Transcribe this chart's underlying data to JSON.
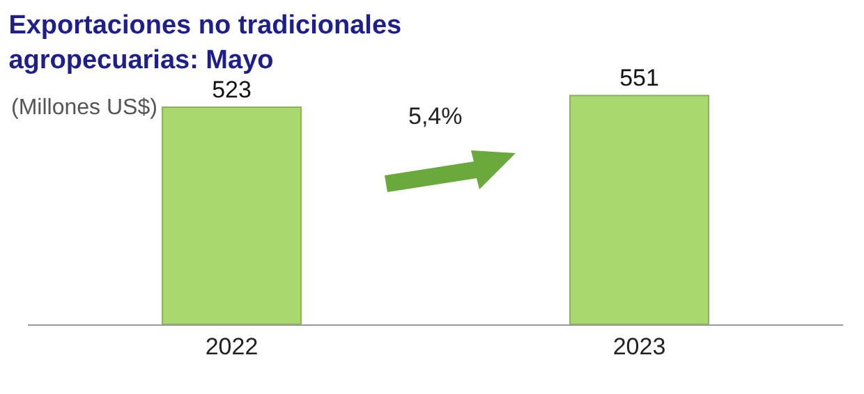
{
  "chart_data": {
    "type": "bar",
    "title": "Exportaciones no tradicionales\nagropecuarias: Mayo",
    "subtitle": "(Millones US$)",
    "categories": [
      "2022",
      "2023"
    ],
    "values": [
      523,
      551
    ],
    "color": "#a9d86e",
    "data_labels": true,
    "grid": false,
    "legend": false,
    "annotations": [
      "5,4%"
    ]
  }
}
